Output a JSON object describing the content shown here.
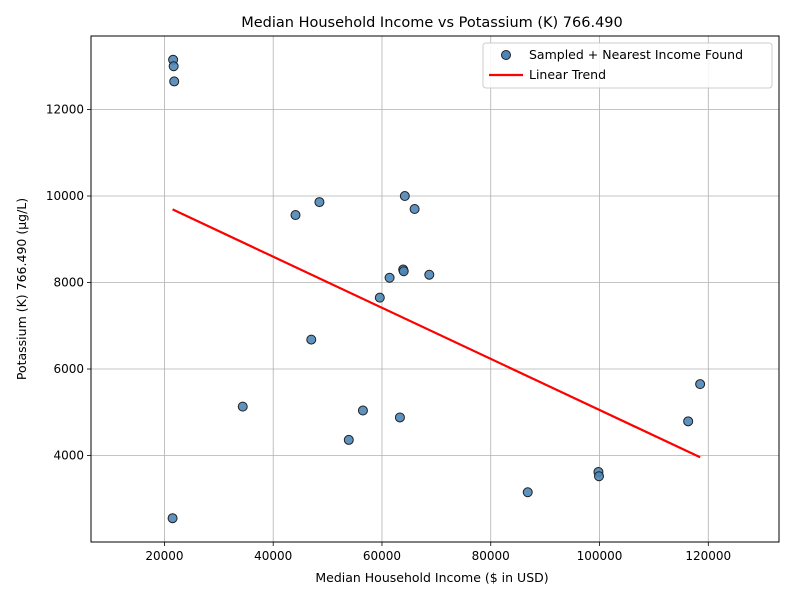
{
  "chart_data": {
    "type": "scatter",
    "title": "Median Household Income vs Potassium (K) 766.490",
    "xlabel": "Median Household Income ($ in USD)",
    "ylabel": "Potassium (K) 766.490 (µg/L)",
    "xlim": [
      6500,
      133000
    ],
    "ylim": [
      2000,
      13700
    ],
    "xticks": [
      20000,
      40000,
      60000,
      80000,
      100000,
      120000
    ],
    "yticks": [
      4000,
      6000,
      8000,
      10000,
      12000
    ],
    "grid": true,
    "legend_position": "top-right",
    "series": [
      {
        "name": "Sampled + Nearest Income Found",
        "kind": "scatter",
        "color": "#4c86b8",
        "edge_color": "#1f1f1f",
        "points": [
          {
            "x": 21600,
            "y": 13150
          },
          {
            "x": 21700,
            "y": 13000
          },
          {
            "x": 21800,
            "y": 12650
          },
          {
            "x": 21500,
            "y": 2550
          },
          {
            "x": 34400,
            "y": 5130
          },
          {
            "x": 44100,
            "y": 9560
          },
          {
            "x": 47000,
            "y": 6680
          },
          {
            "x": 48500,
            "y": 9860
          },
          {
            "x": 53900,
            "y": 4360
          },
          {
            "x": 56500,
            "y": 5040
          },
          {
            "x": 59600,
            "y": 7650
          },
          {
            "x": 61400,
            "y": 8110
          },
          {
            "x": 63300,
            "y": 4880
          },
          {
            "x": 63900,
            "y": 8300
          },
          {
            "x": 64000,
            "y": 8260
          },
          {
            "x": 64200,
            "y": 10000
          },
          {
            "x": 66000,
            "y": 9700
          },
          {
            "x": 68700,
            "y": 8180
          },
          {
            "x": 86800,
            "y": 3150
          },
          {
            "x": 99800,
            "y": 3620
          },
          {
            "x": 99900,
            "y": 3520
          },
          {
            "x": 116300,
            "y": 4790
          },
          {
            "x": 118500,
            "y": 5650
          }
        ]
      },
      {
        "name": "Linear Trend",
        "kind": "line",
        "color": "#ff0000",
        "points": [
          {
            "x": 21500,
            "y": 9690
          },
          {
            "x": 118500,
            "y": 3960
          }
        ]
      }
    ]
  }
}
